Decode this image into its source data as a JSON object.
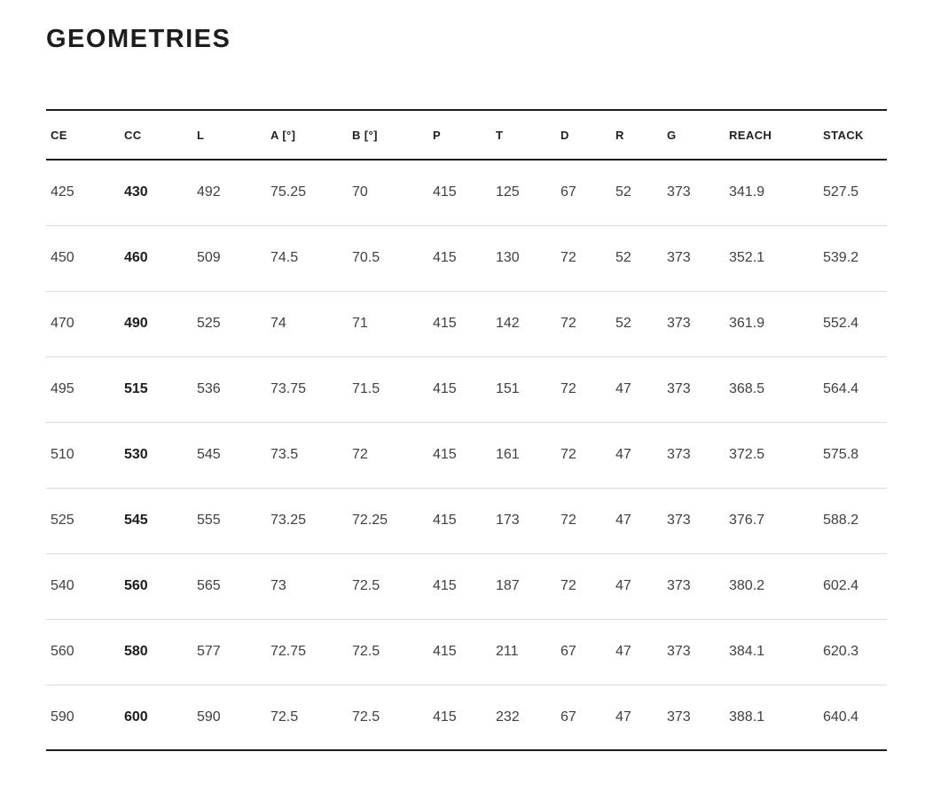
{
  "page": {
    "title": "GEOMETRIES"
  },
  "colors": {
    "background": "#ffffff",
    "title_text": "#1d1d1d",
    "header_text": "#1f1f1f",
    "cell_text": "#404040",
    "strong_rule": "#1c1c1c",
    "row_divider": "#dcdcdc"
  },
  "table": {
    "columns": [
      "CE",
      "CC",
      "L",
      "A [°]",
      "B [°]",
      "P",
      "T",
      "D",
      "R",
      "G",
      "REACH",
      "STACK"
    ],
    "emphasized_column": "CC",
    "rows": [
      [
        "425",
        "430",
        "492",
        "75.25",
        "70",
        "415",
        "125",
        "67",
        "52",
        "373",
        "341.9",
        "527.5"
      ],
      [
        "450",
        "460",
        "509",
        "74.5",
        "70.5",
        "415",
        "130",
        "72",
        "52",
        "373",
        "352.1",
        "539.2"
      ],
      [
        "470",
        "490",
        "525",
        "74",
        "71",
        "415",
        "142",
        "72",
        "52",
        "373",
        "361.9",
        "552.4"
      ],
      [
        "495",
        "515",
        "536",
        "73.75",
        "71.5",
        "415",
        "151",
        "72",
        "47",
        "373",
        "368.5",
        "564.4"
      ],
      [
        "510",
        "530",
        "545",
        "73.5",
        "72",
        "415",
        "161",
        "72",
        "47",
        "373",
        "372.5",
        "575.8"
      ],
      [
        "525",
        "545",
        "555",
        "73.25",
        "72.25",
        "415",
        "173",
        "72",
        "47",
        "373",
        "376.7",
        "588.2"
      ],
      [
        "540",
        "560",
        "565",
        "73",
        "72.5",
        "415",
        "187",
        "72",
        "47",
        "373",
        "380.2",
        "602.4"
      ],
      [
        "560",
        "580",
        "577",
        "72.75",
        "72.5",
        "415",
        "211",
        "67",
        "47",
        "373",
        "384.1",
        "620.3"
      ],
      [
        "590",
        "600",
        "590",
        "72.5",
        "72.5",
        "415",
        "232",
        "67",
        "47",
        "373",
        "388.1",
        "640.4"
      ]
    ]
  }
}
